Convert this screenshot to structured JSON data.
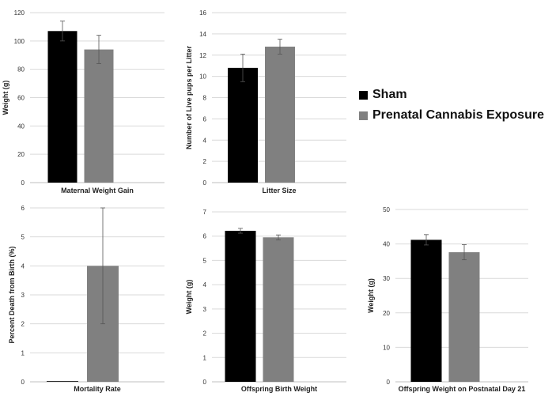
{
  "legend": {
    "items": [
      {
        "label": "Sham",
        "color": "#000000"
      },
      {
        "label": "Prenatal Cannabis Exposure",
        "color": "#808080"
      }
    ]
  },
  "chart_data": [
    {
      "type": "bar",
      "categories": [
        "Sham",
        "Prenatal Cannabis Exposure"
      ],
      "values": [
        107,
        94
      ],
      "errors": [
        7,
        10
      ],
      "xlabel": "Maternal Weight Gain",
      "ylabel": "Weight (g)",
      "ylim": [
        0,
        120
      ],
      "yticks": [
        0,
        20,
        40,
        60,
        80,
        100,
        120
      ],
      "grid": true
    },
    {
      "type": "bar",
      "categories": [
        "Sham",
        "Prenatal Cannabis Exposure"
      ],
      "values": [
        10.8,
        12.8
      ],
      "errors": [
        1.3,
        0.7
      ],
      "xlabel": "Litter Size",
      "ylabel": "Number of Live pups per Litter",
      "ylim": [
        0,
        16
      ],
      "yticks": [
        0,
        2,
        4,
        6,
        8,
        10,
        12,
        14,
        16
      ],
      "grid": true
    },
    {
      "type": "bar",
      "categories": [
        "Sham",
        "Prenatal Cannabis Exposure"
      ],
      "values": [
        0.02,
        4
      ],
      "errors": [
        0,
        2
      ],
      "xlabel": "Mortality Rate",
      "ylabel": "Percent Death from Birth (%)",
      "ylim": [
        0,
        6
      ],
      "yticks": [
        0,
        1,
        2,
        3,
        4,
        5,
        6
      ],
      "grid": true
    },
    {
      "type": "bar",
      "categories": [
        "Sham",
        "Prenatal Cannabis Exposure"
      ],
      "values": [
        6.22,
        5.95
      ],
      "errors": [
        0.1,
        0.1
      ],
      "xlabel": "Offspring Birth Weight",
      "ylabel": "Weight (g)",
      "ylim": [
        0,
        7
      ],
      "yticks": [
        0,
        1,
        2,
        3,
        4,
        5,
        6,
        7
      ],
      "grid": true
    },
    {
      "type": "bar",
      "categories": [
        "Sham",
        "Prenatal Cannabis Exposure"
      ],
      "values": [
        41.2,
        37.6
      ],
      "errors": [
        1.5,
        2.2
      ],
      "xlabel": "Offspring Weight on Postnatal Day 21",
      "ylabel": "Weight (g)",
      "ylim": [
        0,
        50
      ],
      "yticks": [
        0,
        10,
        20,
        30,
        40,
        50
      ],
      "grid": true
    }
  ]
}
